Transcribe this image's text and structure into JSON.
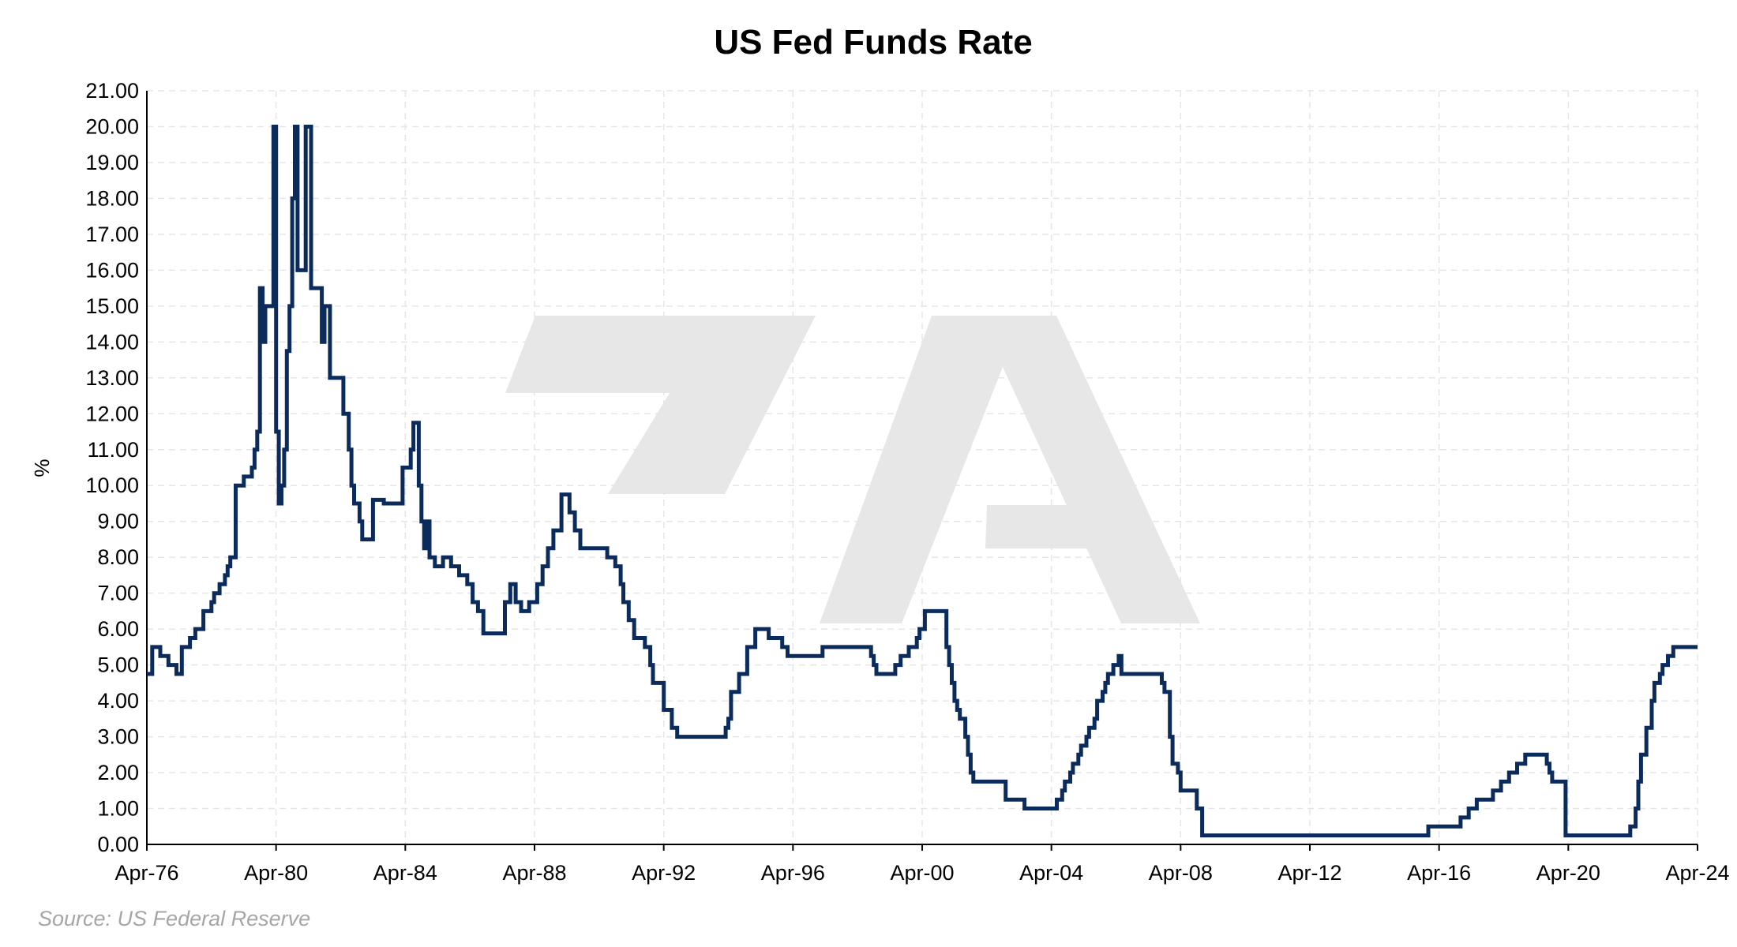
{
  "chart_data": {
    "type": "line",
    "title": "US Fed Funds Rate",
    "ylabel": "%",
    "xlabel": "",
    "source": "Source: US Federal Reserve",
    "watermark": "7A",
    "ylim": [
      0,
      21
    ],
    "y_ticks": [
      "0.00",
      "1.00",
      "2.00",
      "3.00",
      "4.00",
      "5.00",
      "6.00",
      "7.00",
      "8.00",
      "9.00",
      "10.00",
      "11.00",
      "12.00",
      "13.00",
      "14.00",
      "15.00",
      "16.00",
      "17.00",
      "18.00",
      "19.00",
      "20.00",
      "21.00"
    ],
    "x_ticks": [
      "Apr-76",
      "Apr-80",
      "Apr-84",
      "Apr-88",
      "Apr-92",
      "Apr-96",
      "Apr-00",
      "Apr-04",
      "Apr-08",
      "Apr-12",
      "Apr-16",
      "Apr-20",
      "Apr-24"
    ],
    "xlim": [
      "1976-04",
      "2024-04"
    ],
    "grid": true,
    "colors": {
      "line": "#0b2b5c",
      "grid": "#e6e6e6",
      "watermark": "#e7e7e7",
      "source": "#a6a6a6"
    },
    "series": [
      {
        "x": [
          "1976-04",
          "1976-06",
          "1976-09",
          "1976-12",
          "1977-01",
          "1977-03",
          "1977-05",
          "1977-08",
          "1977-10",
          "1978-01",
          "1978-04",
          "1978-05",
          "1978-07",
          "1978-09",
          "1978-10",
          "1978-11",
          "1979-01",
          "1979-04",
          "1979-07",
          "1979-08",
          "1979-09",
          "1979-10",
          "1979-11",
          "1979-12",
          "1980-03",
          "1980-04",
          "1980-05",
          "1980-06",
          "1980-07",
          "1980-08",
          "1980-09",
          "1980-10",
          "1980-11",
          "1980-12",
          "1981-01",
          "1981-03",
          "1981-05",
          "1981-07",
          "1981-09",
          "1981-10",
          "1981-12",
          "1982-02",
          "1982-05",
          "1982-07",
          "1982-08",
          "1982-09",
          "1982-11",
          "1982-12",
          "1983-04",
          "1983-08",
          "1984-03",
          "1984-06",
          "1984-07",
          "1984-09",
          "1984-10",
          "1984-11",
          "1984-12",
          "1985-01",
          "1985-03",
          "1985-06",
          "1985-09",
          "1985-12",
          "1986-03",
          "1986-05",
          "1986-07",
          "1986-09",
          "1987-01",
          "1987-05",
          "1987-07",
          "1987-09",
          "1987-11",
          "1988-02",
          "1988-05",
          "1988-07",
          "1988-09",
          "1988-11",
          "1989-02",
          "1989-05",
          "1989-07",
          "1989-09",
          "1989-12",
          "1990-07",
          "1990-10",
          "1990-12",
          "1991-01",
          "1991-03",
          "1991-05",
          "1991-09",
          "1991-11",
          "1991-12",
          "1992-04",
          "1992-07",
          "1992-09",
          "1994-02",
          "1994-03",
          "1994-04",
          "1994-05",
          "1994-08",
          "1994-11",
          "1995-02",
          "1995-07",
          "1995-12",
          "1996-02",
          "1997-03",
          "1998-09",
          "1998-10",
          "1998-11",
          "1999-06",
          "1999-08",
          "1999-11",
          "2000-02",
          "2000-03",
          "2000-05",
          "2001-01",
          "2001-02",
          "2001-03",
          "2001-04",
          "2001-05",
          "2001-06",
          "2001-08",
          "2001-09",
          "2001-10",
          "2001-11",
          "2001-12",
          "2002-11",
          "2003-06",
          "2004-06",
          "2004-08",
          "2004-09",
          "2004-11",
          "2004-12",
          "2005-02",
          "2005-03",
          "2005-05",
          "2005-06",
          "2005-08",
          "2005-09",
          "2005-11",
          "2005-12",
          "2006-01",
          "2006-03",
          "2006-05",
          "2006-06",
          "2007-09",
          "2007-10",
          "2007-12",
          "2008-01",
          "2008-03",
          "2008-04",
          "2008-10",
          "2008-12",
          "2015-12",
          "2016-12",
          "2017-03",
          "2017-06",
          "2017-12",
          "2018-03",
          "2018-06",
          "2018-09",
          "2018-12",
          "2019-08",
          "2019-09",
          "2019-10",
          "2020-03",
          "2022-03",
          "2022-05",
          "2022-06",
          "2022-07",
          "2022-09",
          "2022-11",
          "2022-12",
          "2023-02",
          "2023-03",
          "2023-05",
          "2023-07",
          "2024-04"
        ],
        "values": [
          4.75,
          5.5,
          5.25,
          5.0,
          5.0,
          4.75,
          5.5,
          5.75,
          6.0,
          6.5,
          6.75,
          7.0,
          7.25,
          7.5,
          7.75,
          8.0,
          10.0,
          10.25,
          10.5,
          11.0,
          11.5,
          15.5,
          14.0,
          15.0,
          20.0,
          11.5,
          9.5,
          10.0,
          11.0,
          13.75,
          15.0,
          18.0,
          20.0,
          16.0,
          16.0,
          20.0,
          15.5,
          15.5,
          14.0,
          15.0,
          13.0,
          13.0,
          12.0,
          11.0,
          10.0,
          9.5,
          9.0,
          8.5,
          9.6,
          9.5,
          10.5,
          11.0,
          11.75,
          10.0,
          9.0,
          8.25,
          9.0,
          8.0,
          7.75,
          8.0,
          7.75,
          7.5,
          7.25,
          6.75,
          6.5,
          5.88,
          5.88,
          6.75,
          7.25,
          6.75,
          6.5,
          6.75,
          7.25,
          7.75,
          8.25,
          8.75,
          9.75,
          9.25,
          8.75,
          8.25,
          8.25,
          8.0,
          7.75,
          7.25,
          6.75,
          6.25,
          5.75,
          5.5,
          5.0,
          4.5,
          3.75,
          3.25,
          3.0,
          3.0,
          3.25,
          3.5,
          4.25,
          4.75,
          5.5,
          6.0,
          5.75,
          5.5,
          5.25,
          5.5,
          5.25,
          5.0,
          4.75,
          5.0,
          5.25,
          5.5,
          5.75,
          6.0,
          6.5,
          5.5,
          5.0,
          4.5,
          4.0,
          3.75,
          3.5,
          3.0,
          2.5,
          2.0,
          1.75,
          1.75,
          1.25,
          1.0,
          1.25,
          1.5,
          1.75,
          2.0,
          2.25,
          2.5,
          2.75,
          3.0,
          3.25,
          3.5,
          4.0,
          4.25,
          4.5,
          4.75,
          5.0,
          5.25,
          4.75,
          4.5,
          4.25,
          3.0,
          2.25,
          2.0,
          1.5,
          1.0,
          0.25,
          0.5,
          0.75,
          1.0,
          1.25,
          1.5,
          1.75,
          2.0,
          2.25,
          2.5,
          2.25,
          2.0,
          1.75,
          0.25,
          0.5,
          1.0,
          1.75,
          2.5,
          3.25,
          4.0,
          4.5,
          4.75,
          5.0,
          5.25,
          5.5,
          5.5
        ]
      }
    ]
  }
}
